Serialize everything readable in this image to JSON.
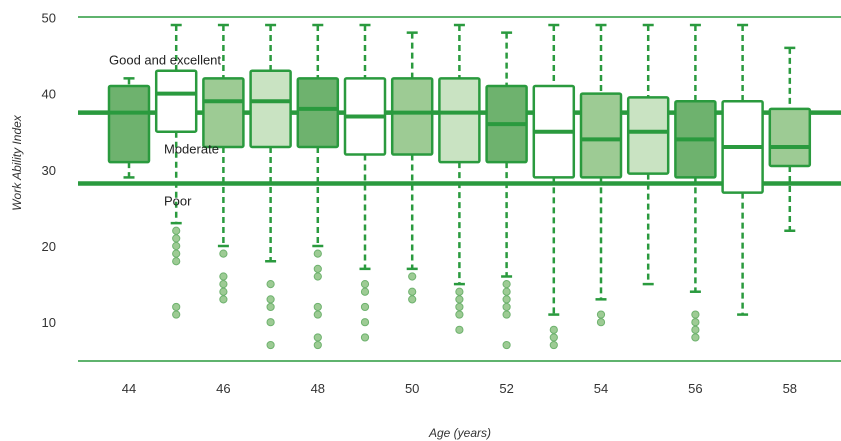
{
  "chart_data": {
    "type": "boxplot",
    "xlabel": "Age (years)",
    "ylabel": "Work Ability Index",
    "ylim": [
      5,
      50
    ],
    "y_ticks": [
      10,
      20,
      30,
      40,
      50
    ],
    "x_tick_labels": [
      "44",
      "46",
      "48",
      "50",
      "52",
      "54",
      "56",
      "58"
    ],
    "grid": false,
    "reference_lines": [
      {
        "y": 37.5,
        "color": "#2a9a3e"
      },
      {
        "y": 28.2,
        "color": "#2a9a3e"
      }
    ],
    "band_labels": [
      {
        "text": "Good and excellent",
        "y": 44.5
      },
      {
        "text": "Moderate",
        "y": 32.8
      },
      {
        "text": "Poor",
        "y": 26.0
      }
    ],
    "boxes": [
      {
        "age": 44,
        "whisker_low": 29,
        "q1": 31,
        "median": 37.5,
        "q3": 41,
        "whisker_high": 42,
        "fill": "dark",
        "outliers": []
      },
      {
        "age": 45,
        "whisker_low": 23,
        "q1": 35,
        "median": 40,
        "q3": 43,
        "whisker_high": 49,
        "fill": "white",
        "outliers": [
          22,
          21,
          20,
          19,
          18,
          12,
          11
        ]
      },
      {
        "age": 46,
        "whisker_low": 20,
        "q1": 33,
        "median": 39,
        "q3": 42,
        "whisker_high": 49,
        "fill": "medium",
        "outliers": [
          19,
          16,
          15,
          14,
          13
        ]
      },
      {
        "age": 47,
        "whisker_low": 18,
        "q1": 33,
        "median": 39,
        "q3": 43,
        "whisker_high": 49,
        "fill": "light",
        "outliers": [
          15,
          13,
          12,
          10,
          7
        ]
      },
      {
        "age": 48,
        "whisker_low": 20,
        "q1": 33,
        "median": 38,
        "q3": 42,
        "whisker_high": 49,
        "fill": "dark",
        "outliers": [
          19,
          17,
          16,
          12,
          11,
          8,
          7
        ]
      },
      {
        "age": 49,
        "whisker_low": 17,
        "q1": 32,
        "median": 37,
        "q3": 42,
        "whisker_high": 49,
        "fill": "white",
        "outliers": [
          15,
          14,
          12,
          10,
          8
        ]
      },
      {
        "age": 50,
        "whisker_low": 17,
        "q1": 32,
        "median": 37.5,
        "q3": 42,
        "whisker_high": 48,
        "fill": "medium",
        "outliers": [
          16,
          14,
          13
        ]
      },
      {
        "age": 51,
        "whisker_low": 15,
        "q1": 31,
        "median": 37.5,
        "q3": 42,
        "whisker_high": 49,
        "fill": "light",
        "outliers": [
          14,
          13,
          12,
          11,
          9
        ]
      },
      {
        "age": 52,
        "whisker_low": 16,
        "q1": 31,
        "median": 36,
        "q3": 41,
        "whisker_high": 48,
        "fill": "dark",
        "outliers": [
          15,
          14,
          13,
          12,
          11,
          7
        ]
      },
      {
        "age": 53,
        "whisker_low": 11,
        "q1": 29,
        "median": 35,
        "q3": 41,
        "whisker_high": 49,
        "fill": "white",
        "outliers": [
          9,
          8,
          7
        ]
      },
      {
        "age": 54,
        "whisker_low": 13,
        "q1": 29,
        "median": 34,
        "q3": 40,
        "whisker_high": 49,
        "fill": "medium",
        "outliers": [
          11,
          10
        ]
      },
      {
        "age": 55,
        "whisker_low": 15,
        "q1": 29.5,
        "median": 35,
        "q3": 39.5,
        "whisker_high": 49,
        "fill": "light",
        "outliers": []
      },
      {
        "age": 56,
        "whisker_low": 14,
        "q1": 29,
        "median": 34,
        "q3": 39,
        "whisker_high": 49,
        "fill": "dark",
        "outliers": [
          11,
          10,
          9,
          8
        ]
      },
      {
        "age": 57,
        "whisker_low": 11,
        "q1": 27,
        "median": 33,
        "q3": 39,
        "whisker_high": 49,
        "fill": "white",
        "outliers": []
      },
      {
        "age": 58,
        "whisker_low": 22,
        "q1": 30.5,
        "median": 33,
        "q3": 38,
        "whisker_high": 46,
        "fill": "medium",
        "outliers": []
      }
    ],
    "colors": {
      "stroke": "#2a9a3e",
      "dark": "#6eb26e",
      "medium": "#9dcb94",
      "light": "#c9e3c2",
      "white": "#ffffff",
      "outlier_fill": "#9dcb94",
      "text": "#333333"
    }
  }
}
